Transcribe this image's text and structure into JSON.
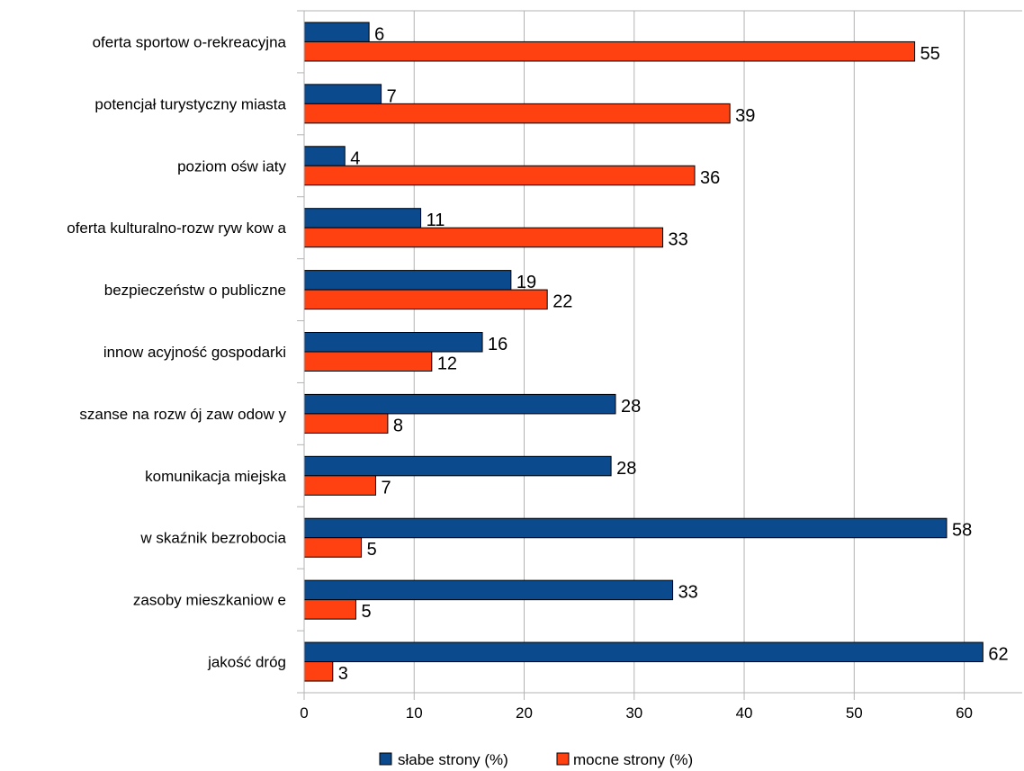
{
  "chart_data": {
    "type": "bar",
    "orientation": "horizontal",
    "categories": [
      "oferta sportow o-rekreacyjna",
      "potencjał turystyczny miasta",
      "poziom ośw iaty",
      "oferta kulturalno-rozw ryw kow a",
      "bezpieczeństw o publiczne",
      "innow acyjność gospodarki",
      "szanse na rozw ój zaw odow y",
      "komunikacja miejska",
      "w skaźnik bezrobocia",
      "zasoby mieszkaniow e",
      "jakość dróg"
    ],
    "series": [
      {
        "name": "słabe strony (%)",
        "color": "#0b4a8c",
        "values": [
          6,
          7,
          4,
          11,
          19,
          16,
          28,
          28,
          58,
          33,
          62
        ],
        "bar_values": [
          5.9,
          7.0,
          3.7,
          10.6,
          18.8,
          16.2,
          28.3,
          27.9,
          58.4,
          33.5,
          61.7
        ]
      },
      {
        "name": "mocne strony (%)",
        "color": "#ff4010",
        "values": [
          55,
          39,
          36,
          33,
          22,
          12,
          8,
          7,
          5,
          5,
          3
        ],
        "bar_values": [
          55.5,
          38.7,
          35.5,
          32.6,
          22.1,
          11.6,
          7.6,
          6.5,
          5.2,
          4.7,
          2.6
        ]
      }
    ],
    "xlim": [
      0,
      65
    ],
    "xticks": [
      "0",
      "10",
      "20",
      "30",
      "40",
      "50",
      "60"
    ],
    "xtick_values": [
      0,
      10,
      20,
      30,
      40,
      50,
      60
    ],
    "grid": true,
    "legend_position": "bottom"
  }
}
